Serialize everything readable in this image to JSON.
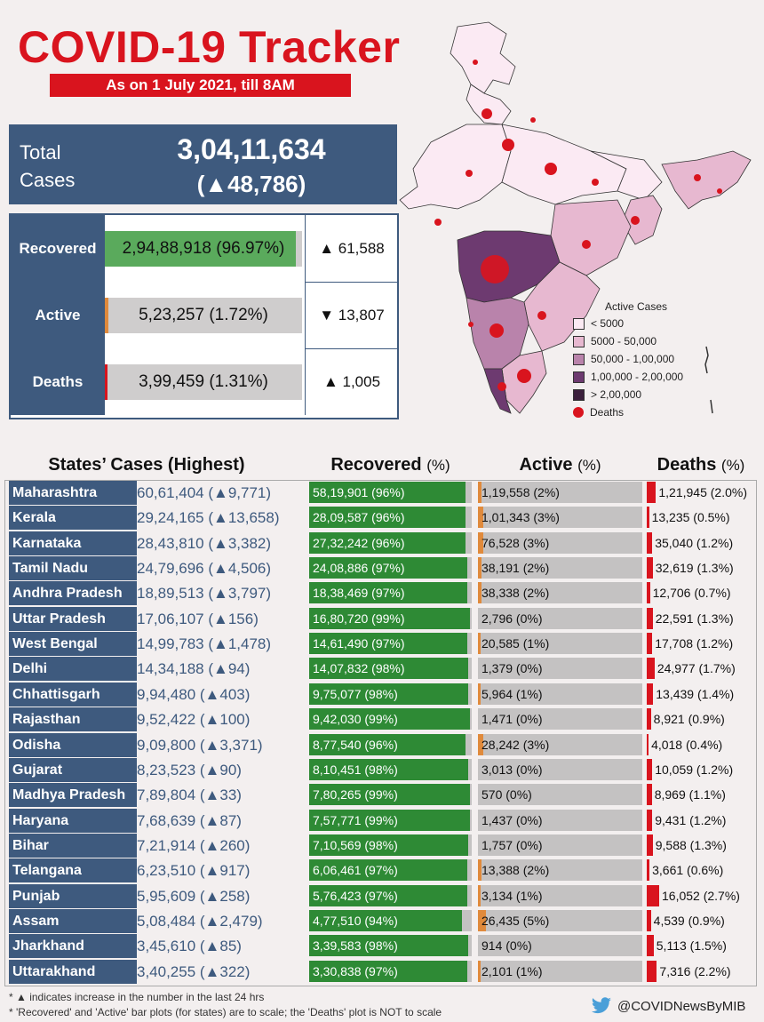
{
  "title": "COVID-19 Tracker",
  "subtitle": "As on 1 July 2021, till 8AM",
  "total": {
    "label": "Total Cases",
    "value": "3,04,11,634",
    "delta": "(▲48,786)"
  },
  "summary": [
    {
      "label": "Recovered",
      "text": "2,94,88,918 (96.97%)",
      "percent": 96.97,
      "color": "#5aaa5c",
      "delta": "▲ 61,588"
    },
    {
      "label": "Active",
      "text": "5,23,257 (1.72%)",
      "percent": 1.72,
      "color": "#e08a3c",
      "delta": "▼ 13,807"
    },
    {
      "label": "Deaths",
      "text": "3,99,459 (1.31%)",
      "percent": 1.31,
      "color": "#d9141e",
      "delta": "▲ 1,005"
    }
  ],
  "legend": {
    "title": "Active Cases",
    "items": [
      {
        "label": "< 5000",
        "color": "#fbeaf3"
      },
      {
        "label": "5000 - 50,000",
        "color": "#e7b8d0"
      },
      {
        "label": "50,000 - 1,00,000",
        "color": "#b983ab"
      },
      {
        "label": "1,00,000 - 2,00,000",
        "color": "#6d3a70"
      },
      {
        "label": "> 2,00,000",
        "color": "#3b1f3c"
      }
    ],
    "deaths_label": "Deaths",
    "deaths_color": "#d9141e"
  },
  "headers": {
    "states": "States’ Cases (Highest)",
    "recovered": "Recovered",
    "active": "Active",
    "deaths": "Deaths",
    "pct": "(%)"
  },
  "chart_data": {
    "type": "table",
    "columns": [
      "State",
      "Cases",
      "Recovered",
      "Active",
      "Deaths"
    ],
    "rows": [
      {
        "state": "Maharashtra",
        "cases": "60,61,404 (▲9,771)",
        "recovered": "58,19,901 (96%)",
        "rec_pct": 96,
        "active": "1,19,558 (2%)",
        "act_pct": 2,
        "deaths": "1,21,945 (2.0%)",
        "dth_pct": 2.0
      },
      {
        "state": "Kerala",
        "cases": "29,24,165 (▲13,658)",
        "recovered": "28,09,587 (96%)",
        "rec_pct": 96,
        "active": "1,01,343 (3%)",
        "act_pct": 3,
        "deaths": "13,235 (0.5%)",
        "dth_pct": 0.5
      },
      {
        "state": "Karnataka",
        "cases": "28,43,810 (▲3,382)",
        "recovered": "27,32,242 (96%)",
        "rec_pct": 96,
        "active": "76,528 (3%)",
        "act_pct": 3,
        "deaths": "35,040 (1.2%)",
        "dth_pct": 1.2
      },
      {
        "state": "Tamil Nadu",
        "cases": "24,79,696 (▲4,506)",
        "recovered": "24,08,886 (97%)",
        "rec_pct": 97,
        "active": "38,191 (2%)",
        "act_pct": 2,
        "deaths": "32,619 (1.3%)",
        "dth_pct": 1.3
      },
      {
        "state": "Andhra Pradesh",
        "cases": "18,89,513 (▲3,797)",
        "recovered": "18,38,469 (97%)",
        "rec_pct": 97,
        "active": "38,338 (2%)",
        "act_pct": 2,
        "deaths": "12,706 (0.7%)",
        "dth_pct": 0.7
      },
      {
        "state": "Uttar Pradesh",
        "cases": "17,06,107 (▲156)",
        "recovered": "16,80,720 (99%)",
        "rec_pct": 99,
        "active": "2,796 (0%)",
        "act_pct": 0,
        "deaths": "22,591 (1.3%)",
        "dth_pct": 1.3
      },
      {
        "state": "West Bengal",
        "cases": "14,99,783 (▲1,478)",
        "recovered": "14,61,490 (97%)",
        "rec_pct": 97,
        "active": "20,585 (1%)",
        "act_pct": 1,
        "deaths": "17,708 (1.2%)",
        "dth_pct": 1.2
      },
      {
        "state": "Delhi",
        "cases": "14,34,188 (▲94)",
        "recovered": "14,07,832 (98%)",
        "rec_pct": 98,
        "active": "1,379 (0%)",
        "act_pct": 0,
        "deaths": "24,977 (1.7%)",
        "dth_pct": 1.7
      },
      {
        "state": "Chhattisgarh",
        "cases": "9,94,480 (▲403)",
        "recovered": "9,75,077 (98%)",
        "rec_pct": 98,
        "active": "5,964 (1%)",
        "act_pct": 1,
        "deaths": "13,439 (1.4%)",
        "dth_pct": 1.4
      },
      {
        "state": "Rajasthan",
        "cases": "9,52,422 (▲100)",
        "recovered": "9,42,030 (99%)",
        "rec_pct": 99,
        "active": "1,471 (0%)",
        "act_pct": 0,
        "deaths": "8,921 (0.9%)",
        "dth_pct": 0.9
      },
      {
        "state": "Odisha",
        "cases": "9,09,800 (▲3,371)",
        "recovered": "8,77,540 (96%)",
        "rec_pct": 96,
        "active": "28,242 (3%)",
        "act_pct": 3,
        "deaths": "4,018 (0.4%)",
        "dth_pct": 0.4
      },
      {
        "state": "Gujarat",
        "cases": "8,23,523 (▲90)",
        "recovered": "8,10,451 (98%)",
        "rec_pct": 98,
        "active": "3,013 (0%)",
        "act_pct": 0,
        "deaths": "10,059 (1.2%)",
        "dth_pct": 1.2
      },
      {
        "state": "Madhya Pradesh",
        "cases": "7,89,804 (▲33)",
        "recovered": "7,80,265 (99%)",
        "rec_pct": 99,
        "active": "570 (0%)",
        "act_pct": 0,
        "deaths": "8,969 (1.1%)",
        "dth_pct": 1.1
      },
      {
        "state": "Haryana",
        "cases": "7,68,639 (▲87)",
        "recovered": "7,57,771 (99%)",
        "rec_pct": 99,
        "active": "1,437 (0%)",
        "act_pct": 0,
        "deaths": "9,431 (1.2%)",
        "dth_pct": 1.2
      },
      {
        "state": "Bihar",
        "cases": "7,21,914 (▲260)",
        "recovered": "7,10,569 (98%)",
        "rec_pct": 98,
        "active": "1,757 (0%)",
        "act_pct": 0,
        "deaths": "9,588 (1.3%)",
        "dth_pct": 1.3
      },
      {
        "state": "Telangana",
        "cases": "6,23,510 (▲917)",
        "recovered": "6,06,461 (97%)",
        "rec_pct": 97,
        "active": "13,388 (2%)",
        "act_pct": 2,
        "deaths": "3,661 (0.6%)",
        "dth_pct": 0.6
      },
      {
        "state": "Punjab",
        "cases": "5,95,609 (▲258)",
        "recovered": "5,76,423 (97%)",
        "rec_pct": 97,
        "active": "3,134 (1%)",
        "act_pct": 1,
        "deaths": "16,052 (2.7%)",
        "dth_pct": 2.7
      },
      {
        "state": "Assam",
        "cases": "5,08,484 (▲2,479)",
        "recovered": "4,77,510 (94%)",
        "rec_pct": 94,
        "active": "26,435 (5%)",
        "act_pct": 5,
        "deaths": "4,539 (0.9%)",
        "dth_pct": 0.9
      },
      {
        "state": "Jharkhand",
        "cases": "3,45,610 (▲85)",
        "recovered": "3,39,583 (98%)",
        "rec_pct": 98,
        "active": "914 (0%)",
        "act_pct": 0,
        "deaths": "5,113 (1.5%)",
        "dth_pct": 1.5
      },
      {
        "state": "Uttarakhand",
        "cases": "3,40,255 (▲322)",
        "recovered": "3,30,838 (97%)",
        "rec_pct": 97,
        "active": "2,101 (1%)",
        "act_pct": 1,
        "deaths": "7,316 (2.2%)",
        "dth_pct": 2.2
      }
    ],
    "colors": {
      "recovered": "#2e8a35",
      "active": "#e08a3c",
      "deaths": "#d9141e",
      "state_bg": "#3e5a7e"
    }
  },
  "footnotes": [
    "* ▲ indicates increase in the number in the last 24 hrs",
    "* 'Recovered' and 'Active' bar plots (for states) are to scale; the 'Deaths' plot is NOT to scale"
  ],
  "handle": "@COVIDNewsByMIB",
  "handle_icon": "twitter-icon"
}
